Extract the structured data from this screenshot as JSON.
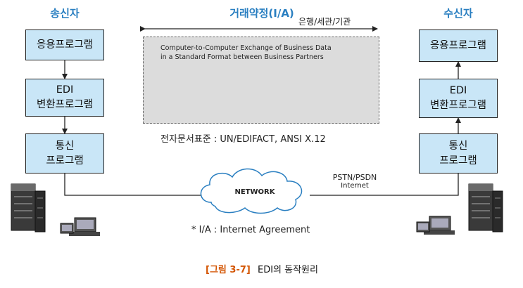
{
  "sender": {
    "title": "송신자",
    "boxes": [
      {
        "lines": [
          "응용프로그램"
        ]
      },
      {
        "lines": [
          "EDI",
          "변환프로그램"
        ]
      },
      {
        "lines": [
          "통신",
          "프로그램"
        ]
      }
    ]
  },
  "receiver": {
    "title": "수신자",
    "boxes": [
      {
        "lines": [
          "응용프로그램"
        ]
      },
      {
        "lines": [
          "EDI",
          "변환프로그램"
        ]
      },
      {
        "lines": [
          "통신",
          "프로그램"
        ]
      }
    ]
  },
  "agreement": {
    "title": "거래약정(I/A)",
    "parties": "은행/세관/기관",
    "description_line1": "Computer-to-Computer Exchange of Business Data",
    "description_line2": "in a Standard Format between Business Partners",
    "standard": "전자문서표준 : UN/EDIFACT, ANSI X.12"
  },
  "network": {
    "label": "NETWORK",
    "type_line1": "PSTN/PSDN",
    "type_line2": "Internet"
  },
  "footnote": "* I/A : Internet Agreement",
  "caption": {
    "number": "[그림 3-7]",
    "title": "EDI의 동작원리"
  },
  "colors": {
    "heading": "#2a7fc1",
    "box_fill": "#c9e6f7",
    "agreement_fill": "#dcdcdc",
    "caption_number": "#d35400"
  }
}
